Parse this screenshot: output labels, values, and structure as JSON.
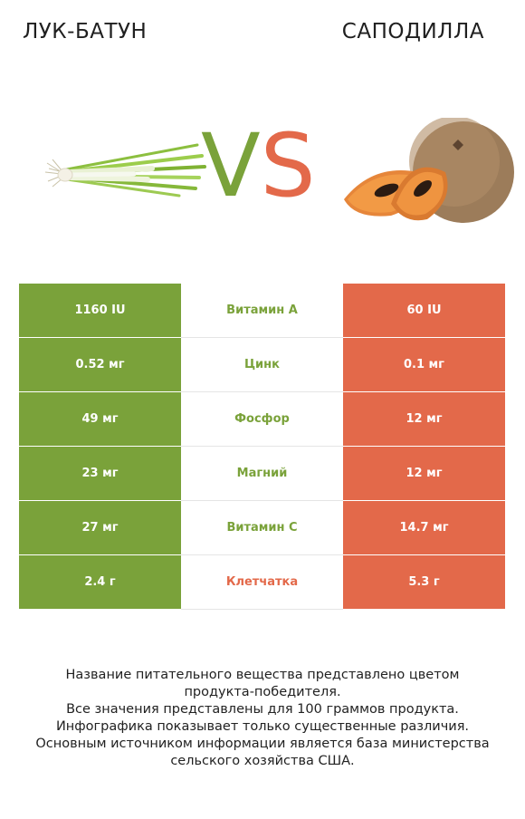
{
  "header": {
    "left_title": "ЛУК-БАТУН",
    "right_title": "САПОДИЛЛА",
    "vs_v": "V",
    "vs_s": "S"
  },
  "images": {
    "left": "green-onion-image",
    "right": "sapodilla-image"
  },
  "colors": {
    "left_accent": "#7aa23a",
    "right_accent": "#e3694a"
  },
  "rows": [
    {
      "left": "1160 IU",
      "nutrient": "Витамин A",
      "right": "60 IU",
      "winner": "left"
    },
    {
      "left": "0.52 мг",
      "nutrient": "Цинк",
      "right": "0.1 мг",
      "winner": "left"
    },
    {
      "left": "49 мг",
      "nutrient": "Фосфор",
      "right": "12 мг",
      "winner": "left"
    },
    {
      "left": "23 мг",
      "nutrient": "Магний",
      "right": "12 мг",
      "winner": "left"
    },
    {
      "left": "27 мг",
      "nutrient": "Витамин C",
      "right": "14.7 мг",
      "winner": "left"
    },
    {
      "left": "2.4 г",
      "nutrient": "Клетчатка",
      "right": "5.3 г",
      "winner": "right"
    }
  ],
  "footer": {
    "line1": "Название питательного вещества представлено цветом",
    "line2": "продукта-победителя.",
    "line3": "Все значения представлены для 100 граммов продукта.",
    "line4": "Инфографика показывает только существенные различия.",
    "line5": "Основным источником информации является база министерства",
    "line6": "сельского хозяйства США."
  }
}
